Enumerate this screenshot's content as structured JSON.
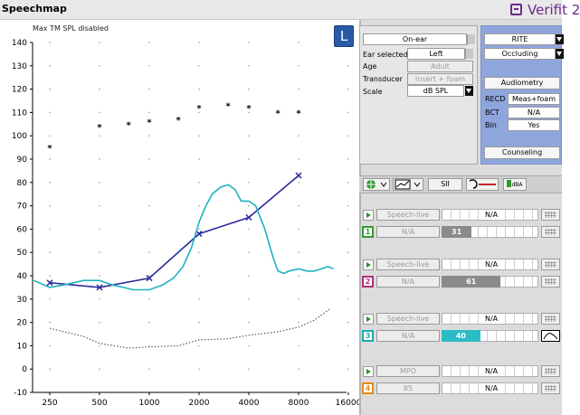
{
  "app": {
    "title": "Speechmap",
    "brand": "Verifit 2"
  },
  "chart_note": "Max TM SPL disabled",
  "left_indicator": "L",
  "config": {
    "ear_mode": "On-ear",
    "ear_selected_label": "Ear selected",
    "ear_selected_value": "Left",
    "age_label": "Age",
    "age_value": "Adult",
    "transducer_label": "Transducer",
    "transducer_value": "Insert + foam",
    "scale_label": "Scale",
    "scale_value": "dB SPL"
  },
  "hearing_aid": {
    "style": "RITE",
    "fitting": "Occluding",
    "audiometry_button": "Audiometry",
    "recd_label": "RECD",
    "recd_value": "Meas+foam",
    "bct_label": "BCT",
    "bct_value": "N/A",
    "bin_label": "Bin",
    "bin_value": "Yes",
    "counseling_button": "Counseling"
  },
  "toolbar": {
    "sii_label": "SII",
    "dba_label": "dBA"
  },
  "tests": [
    {
      "index": "1",
      "color": "#2e9b2e",
      "stimulus": "Speech-live",
      "level": "N/A",
      "sii_header": "N/A",
      "sii_value": "31",
      "sii": 0.31,
      "fill_color": "#8a8a8a"
    },
    {
      "index": "2",
      "color": "#b0307a",
      "stimulus": "Speech-live",
      "level": "N/A",
      "sii_header": "N/A",
      "sii_value": "61",
      "sii": 0.61,
      "fill_color": "#8a8a8a"
    },
    {
      "index": "3",
      "color": "#1fa9a9",
      "stimulus": "Speech-live",
      "level": "N/A",
      "sii_header": "N/A",
      "sii_value": "40",
      "sii": 0.4,
      "fill_color": "#2bbcc6"
    },
    {
      "index": "4",
      "color": "#e08a1a",
      "stimulus": "MPO",
      "level": "85",
      "sii_header": "N/A",
      "sii_value": "N/A",
      "sii": 0,
      "fill_color": "#8a8a8a"
    }
  ],
  "chart_data": {
    "type": "line",
    "xscale": "log",
    "xlim": [
      200,
      16000
    ],
    "ylim": [
      -10,
      140
    ],
    "x_ticks": [
      250,
      500,
      1000,
      2000,
      4000,
      8000,
      16000
    ],
    "y_ticks": [
      -10,
      0,
      10,
      20,
      30,
      40,
      50,
      60,
      70,
      80,
      90,
      100,
      110,
      120,
      130,
      140
    ],
    "grid": true,
    "series": [
      {
        "role": "ucl",
        "color": "#000000",
        "marker": "asterisk",
        "x": [
          250,
          500,
          750,
          1000,
          1500,
          2000,
          3000,
          4000,
          6000,
          8000
        ],
        "y": [
          95,
          104,
          105,
          106,
          107,
          112,
          113,
          112,
          110,
          110
        ]
      },
      {
        "role": "threshold",
        "color": "#5a5a5a",
        "style": "dotted",
        "x": [
          250,
          400,
          500,
          750,
          1000,
          1500,
          2000,
          3000,
          4000,
          6000,
          8000,
          10000,
          12500
        ],
        "y": [
          17.5,
          14,
          11,
          9,
          9.5,
          10,
          12.5,
          13,
          14.5,
          16,
          18,
          21,
          26
        ]
      },
      {
        "role": "target",
        "color": "#2c2c9c",
        "marker": "cross",
        "x": [
          250,
          500,
          1000,
          2000,
          4000,
          8000
        ],
        "y": [
          37,
          35,
          39,
          58,
          65,
          83
        ]
      },
      {
        "role": "measured",
        "color": "#1fb2c0",
        "x": [
          200,
          250,
          300,
          350,
          400,
          500,
          600,
          700,
          800,
          1000,
          1200,
          1400,
          1600,
          1800,
          2000,
          2200,
          2400,
          2700,
          3000,
          3300,
          3600,
          4000,
          4400,
          5000,
          5600,
          6000,
          6500,
          7000,
          8000,
          9000,
          10000,
          11000,
          12000,
          13000
        ],
        "y": [
          38,
          35,
          36,
          37,
          38,
          38,
          36,
          35,
          34,
          34,
          36,
          39,
          44,
          52,
          63,
          70,
          75,
          78,
          79,
          77,
          72,
          72,
          70,
          60,
          48,
          42,
          41,
          42,
          43,
          42,
          42,
          43,
          44,
          43
        ]
      }
    ]
  }
}
